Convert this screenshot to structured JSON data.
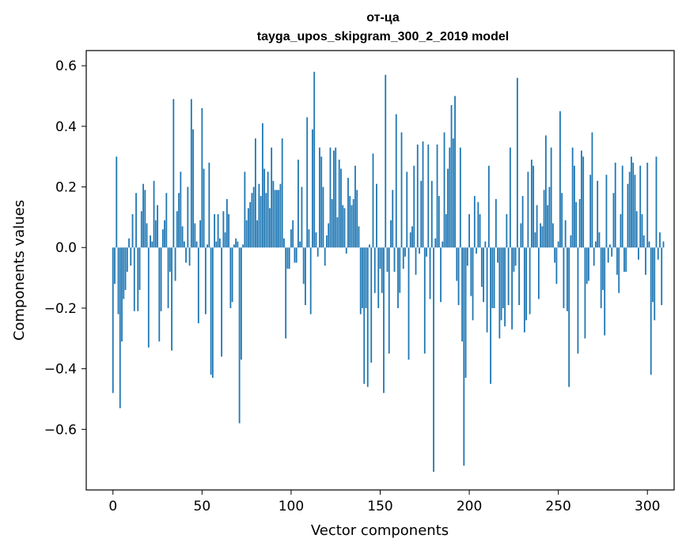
{
  "chart_data": {
    "type": "bar",
    "title": "от-ца",
    "subtitle": "tayga_upos_skipgram_300_2_2019 model",
    "xlabel": "Vector components",
    "ylabel": "Components values",
    "xlim": [
      -15,
      315
    ],
    "ylim": [
      -0.8,
      0.65
    ],
    "xticks": [
      0,
      50,
      100,
      150,
      200,
      250,
      300
    ],
    "yticks": [
      -0.6,
      -0.4,
      -0.2,
      0.0,
      0.2,
      0.4,
      0.6
    ],
    "xtick_labels": [
      "0",
      "50",
      "100",
      "150",
      "200",
      "250",
      "300"
    ],
    "ytick_labels": [
      "−0.6",
      "−0.4",
      "−0.2",
      "0.0",
      "0.2",
      "0.4",
      "0.6"
    ],
    "grid": false,
    "bar_color": "#1f77b4",
    "values": [
      -0.48,
      -0.12,
      0.3,
      -0.22,
      -0.53,
      -0.31,
      -0.17,
      -0.14,
      -0.08,
      0.03,
      -0.06,
      0.11,
      -0.21,
      0.18,
      -0.21,
      -0.14,
      0.12,
      0.21,
      0.19,
      0.08,
      -0.33,
      0.04,
      0.02,
      0.22,
      0.09,
      0.14,
      -0.31,
      -0.21,
      0.06,
      0.09,
      0.18,
      -0.2,
      -0.08,
      -0.34,
      0.49,
      -0.11,
      0.12,
      0.18,
      0.25,
      0.07,
      0.02,
      -0.05,
      0.2,
      -0.06,
      0.49,
      0.39,
      0.08,
      0.02,
      -0.25,
      0.09,
      0.46,
      0.26,
      -0.22,
      0.01,
      0.28,
      -0.42,
      -0.43,
      0.11,
      0.02,
      0.11,
      0.03,
      -0.36,
      0.12,
      0.05,
      0.16,
      0.11,
      -0.2,
      -0.18,
      0.01,
      0.03,
      0.02,
      -0.58,
      -0.37,
      0.01,
      0.25,
      0.09,
      0.13,
      0.15,
      0.18,
      0.2,
      0.36,
      0.09,
      0.21,
      0.17,
      0.41,
      0.26,
      0.18,
      0.25,
      0.13,
      0.33,
      0.22,
      0.19,
      0.19,
      0.19,
      0.21,
      0.36,
      0.03,
      -0.3,
      -0.07,
      -0.07,
      0.06,
      0.09,
      -0.05,
      -0.05,
      0.29,
      0.02,
      0.2,
      -0.12,
      -0.19,
      0.43,
      0.06,
      -0.22,
      0.39,
      0.58,
      0.05,
      -0.03,
      0.33,
      0.3,
      0.2,
      -0.06,
      0.04,
      0.08,
      0.33,
      0.16,
      0.32,
      0.33,
      0.1,
      0.29,
      0.26,
      0.14,
      0.13,
      -0.02,
      0.23,
      0.17,
      0.14,
      0.16,
      0.27,
      0.19,
      0.07,
      -0.22,
      -0.2,
      -0.45,
      -0.2,
      -0.46,
      0.01,
      -0.38,
      0.31,
      -0.15,
      0.21,
      -0.2,
      -0.07,
      -0.15,
      -0.48,
      0.57,
      -0.08,
      -0.35,
      0.09,
      0.19,
      -0.08,
      0.44,
      -0.2,
      -0.15,
      0.38,
      -0.07,
      -0.03,
      0.25,
      -0.37,
      0.05,
      0.07,
      0.27,
      -0.09,
      0.34,
      -0.02,
      0.22,
      0.35,
      -0.35,
      -0.03,
      0.34,
      -0.17,
      0.22,
      -0.74,
      0.03,
      0.34,
      0.17,
      -0.18,
      0.02,
      0.38,
      0.11,
      0.26,
      0.33,
      0.47,
      0.36,
      0.5,
      -0.11,
      -0.19,
      0.33,
      -0.31,
      -0.72,
      -0.43,
      -0.06,
      0.11,
      -0.16,
      -0.24,
      0.17,
      -0.02,
      0.15,
      0.11,
      -0.13,
      -0.18,
      0.02,
      -0.28,
      0.27,
      -0.45,
      -0.2,
      -0.2,
      0.16,
      -0.05,
      -0.3,
      -0.24,
      -0.2,
      -0.26,
      0.11,
      -0.19,
      0.33,
      -0.27,
      -0.08,
      -0.06,
      0.56,
      -0.19,
      0.08,
      0.17,
      -0.28,
      -0.24,
      0.25,
      -0.22,
      0.29,
      0.27,
      0.05,
      0.14,
      -0.17,
      0.08,
      0.07,
      0.19,
      0.37,
      0.14,
      0.2,
      0.33,
      0.08,
      -0.05,
      -0.12,
      0.02,
      0.45,
      0.18,
      -0.2,
      0.09,
      -0.21,
      -0.46,
      0.04,
      0.33,
      0.27,
      0.15,
      -0.35,
      0.16,
      0.32,
      0.3,
      -0.3,
      -0.12,
      -0.11,
      0.24,
      0.38,
      -0.06,
      0.02,
      0.22,
      0.05,
      -0.2,
      -0.14,
      -0.29,
      0.24,
      -0.05,
      0.01,
      -0.03,
      0.18,
      0.28,
      -0.09,
      -0.15,
      0.11,
      0.27,
      -0.08,
      -0.08,
      0.21,
      0.25,
      0.3,
      0.28,
      0.24,
      0.12,
      -0.04,
      0.27,
      0.11,
      0.04,
      -0.09,
      0.28,
      0.02,
      -0.42,
      -0.18,
      -0.24,
      0.3,
      -0.04,
      0.05,
      -0.19,
      0.02
    ]
  }
}
